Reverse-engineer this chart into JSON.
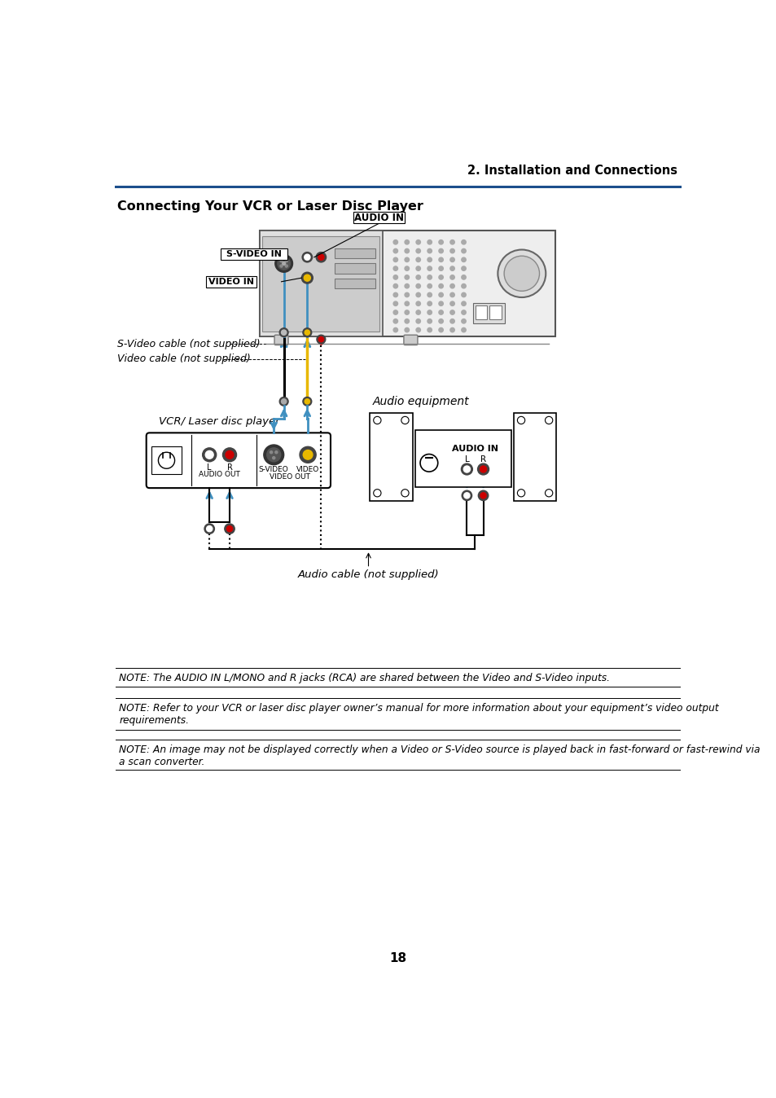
{
  "title_right": "2. Installation and Connections",
  "title_left": "Connecting Your VCR or Laser Disc Player",
  "note1": "NOTE: The AUDIO IN L/MONO and R jacks (RCA) are shared between the Video and S-Video inputs.",
  "note2": "NOTE: Refer to your VCR or laser disc player owner’s manual for more information about your equipment’s video output\nrequirements.",
  "note3": "NOTE: An image may not be displayed correctly when a Video or S-Video source is played back in fast-forward or fast-rewind via\na scan converter.",
  "page_number": "18",
  "label_svideo_in": "S-VIDEO IN",
  "label_audio_in": "AUDIO IN",
  "label_video_in": "VIDEO IN",
  "label_vcr": "VCR/ Laser disc player",
  "label_audio_out": "AUDIO OUT",
  "label_video_out": "VIDEO OUT",
  "label_svideo": "S-VIDEO",
  "label_video": "VIDEO",
  "label_l": "L",
  "label_r": "R",
  "label_audio_cable": "Audio cable (not supplied)",
  "label_svideo_cable": "S-Video cable (not supplied)",
  "label_video_cable": "Video cable (not supplied)",
  "label_audio_equipment": "Audio equipment",
  "label_audio_in_eq": "AUDIO IN",
  "label_lr_eq": "L    R",
  "header_line_color": "#1c4f8c",
  "bg_color": "#ffffff",
  "text_color": "#000000",
  "blue_color": "#4090c0",
  "yellow_color": "#e8b800",
  "red_color": "#cc0000"
}
